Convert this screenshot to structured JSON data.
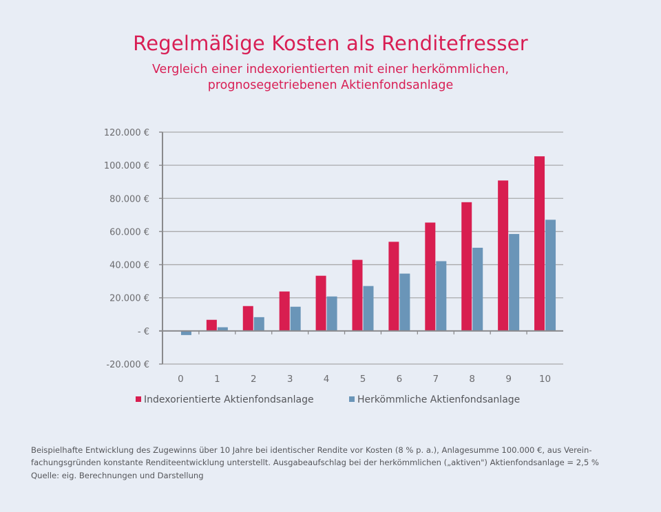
{
  "header": {
    "title": "Regelmäßige Kosten als Renditefresser",
    "subtitle_line1": "Vergleich einer indexorientierten mit einer herkömmlichen,",
    "subtitle_line2": "prognosegetriebenen Aktienfondsanlage"
  },
  "colors": {
    "index": "#d81e50",
    "active": "#6a95b8",
    "title": "#d81e54",
    "axis_text": "#6b6b6e",
    "grid": "#a9a9ab",
    "background": "#e8edf5"
  },
  "chart_data": {
    "type": "bar",
    "title": "Regelmäßige Kosten als Renditefresser",
    "subtitle": "Vergleich einer indexorientierten mit einer herkömmlichen, prognosegetriebenen Aktienfondsanlage",
    "xlabel": "",
    "ylabel": "",
    "categories": [
      "0",
      "1",
      "2",
      "3",
      "4",
      "5",
      "6",
      "7",
      "8",
      "9",
      "10"
    ],
    "series": [
      {
        "name": "Indexorientierte Aktienfondsanlage",
        "color": "#d81e50",
        "values": [
          0,
          6700,
          15000,
          23800,
          33300,
          42900,
          53800,
          65400,
          77700,
          90800,
          105400
        ]
      },
      {
        "name": "Herkömmliche Aktienfondsanlage",
        "color": "#6a95b8",
        "values": [
          -2500,
          2200,
          8300,
          14600,
          20800,
          27100,
          34600,
          42100,
          50200,
          58500,
          67100
        ]
      }
    ],
    "ylim": [
      -20000,
      120000
    ],
    "yticks": [
      -20000,
      0,
      20000,
      40000,
      60000,
      80000,
      100000,
      120000
    ],
    "ytick_labels": [
      "-20.000 €",
      "-   €",
      "20.000 €",
      "40.000 €",
      "60.000 €",
      "80.000 €",
      "100.000 €",
      "120.000 €"
    ],
    "grid": true,
    "legend_position": "bottom"
  },
  "footer": {
    "note_line1": "Beispielhafte Entwicklung des Zugewinns über 10 Jahre bei identischer Rendite vor Kosten (8 % p. a.), Anlagesumme 100.000 €, aus Verein-",
    "note_line2": "fachungsgründen konstante Renditeentwicklung unterstellt. Ausgabeaufschlag bei der herkömmlichen („aktiven\") Aktienfondsanlage = 2,5 %",
    "source": "Quelle: eig. Berechnungen und Darstellung"
  }
}
